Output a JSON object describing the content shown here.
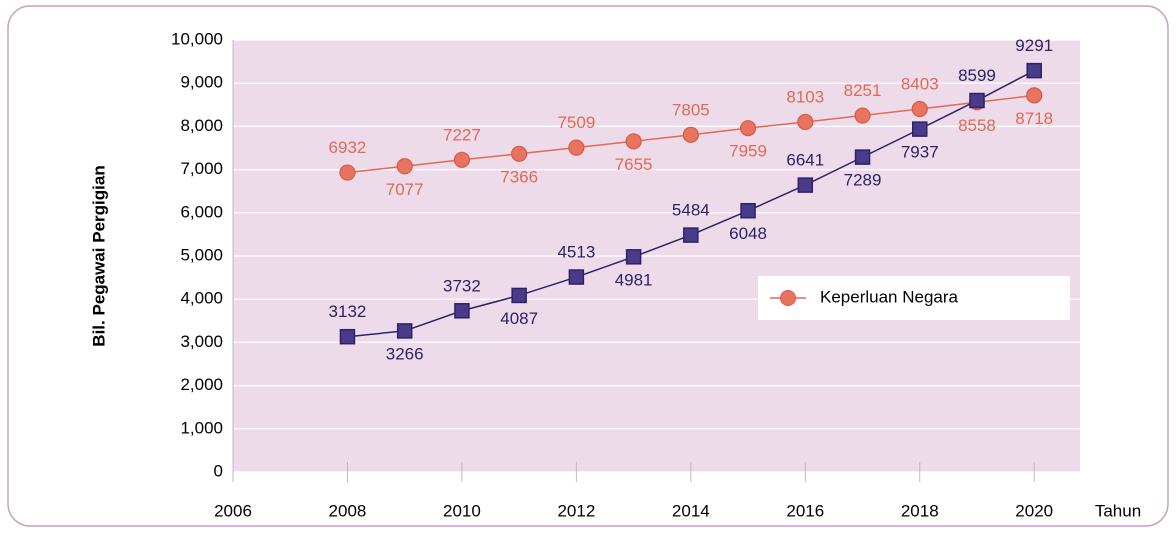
{
  "chart_data": {
    "type": "line",
    "y_label": "Bil. Pegawai Pergigian",
    "x_label": "Tahun",
    "x": [
      2008,
      2009,
      2010,
      2011,
      2012,
      2013,
      2014,
      2015,
      2016,
      2017,
      2018,
      2019,
      2020
    ],
    "series": [
      {
        "name": "Keperluan Negara",
        "color": "#e8735f",
        "marker": "circle",
        "values": [
          6932,
          7077,
          7227,
          7366,
          7509,
          7655,
          7805,
          7959,
          8103,
          8251,
          8403,
          8558,
          8718
        ]
      },
      {
        "color": "#4a3a8a",
        "marker": "square",
        "values": [
          3132,
          3266,
          3732,
          4087,
          4513,
          4981,
          5484,
          6048,
          6641,
          7289,
          7937,
          8599,
          9291
        ]
      }
    ],
    "xlim": [
      2006,
      2020.8
    ],
    "xticks": [
      2006,
      2008,
      2010,
      2012,
      2014,
      2016,
      2018,
      2020
    ],
    "ylim": [
      0,
      10000
    ],
    "yticks": [
      0,
      {
        "value": 1000,
        "label": "1,000"
      },
      {
        "value": 2000,
        "label": "2,000"
      },
      {
        "value": 3000,
        "label": "3,000"
      },
      {
        "value": 4000,
        "label": "4,000"
      },
      {
        "value": 5000,
        "label": "5,000"
      },
      {
        "value": 6000,
        "label": "6,000"
      },
      {
        "value": 7000,
        "label": "7,000"
      },
      {
        "value": 8000,
        "label": "8,000"
      },
      {
        "value": 9000,
        "label": "9,000"
      },
      {
        "value": 10000,
        "label": "10,000"
      }
    ],
    "grid": true,
    "legend": "right"
  }
}
